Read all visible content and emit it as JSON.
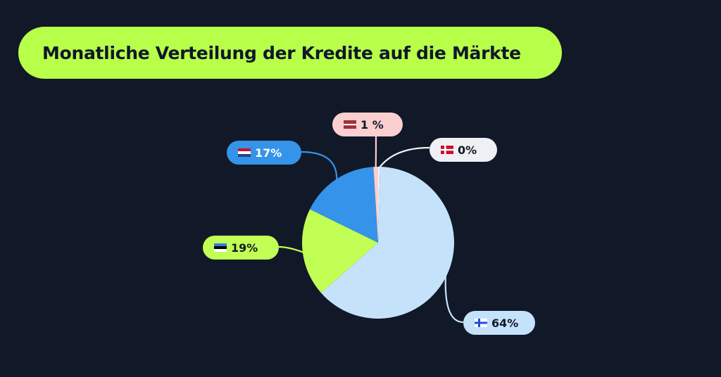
{
  "background": "#111827",
  "title": {
    "text": "Monatliche Verteilung der Kredite auf die Märkte",
    "bg_color": "#b8ff4a",
    "text_color": "#0f172a"
  },
  "chart_data": {
    "type": "pie",
    "title": "Monatliche Verteilung der Kredite auf die Märkte",
    "start": "top, clockwise",
    "slices": [
      {
        "label": "0%",
        "flag": "dk-flag-icon",
        "value": 0.4,
        "color": "#eef0f4",
        "label_color": "#eef0f4",
        "text_color": "#111827"
      },
      {
        "label": "64%",
        "flag": "fi-flag-icon",
        "value": 64,
        "color": "#c5e2fb",
        "label_color": "#c5e2fb",
        "text_color": "#111827"
      },
      {
        "label": "19%",
        "flag": "ee-flag-icon",
        "value": 19,
        "color": "#c2ff55",
        "label_color": "#c2ff55",
        "text_color": "#111827"
      },
      {
        "label": "17%",
        "flag": "nl-flag-icon",
        "value": 17,
        "color": "#3593e9",
        "label_color": "#3593e9",
        "text_color": "#ffffff"
      },
      {
        "label": "1 %",
        "flag": "lv-flag-icon",
        "value": 1,
        "color": "#fbcfd0",
        "label_color": "#fbcfd0",
        "text_color": "#111827"
      }
    ]
  }
}
